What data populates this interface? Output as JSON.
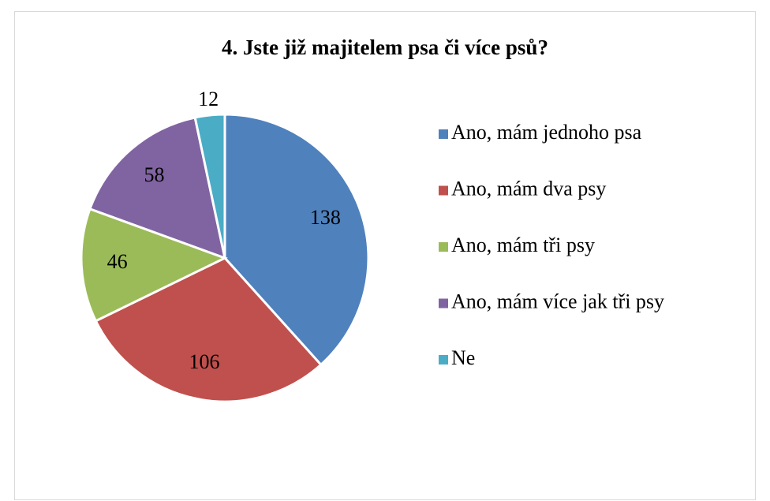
{
  "chart_data": {
    "type": "pie",
    "title": "4. Jste již majitelem psa či více psů?",
    "categories": [
      "Ano, mám jednoho psa",
      "Ano, mám dva psy",
      "Ano, mám tři psy",
      "Ano, mám více jak tři psy",
      "Ne"
    ],
    "values": [
      138,
      106,
      46,
      58,
      12
    ],
    "colors": [
      "#4f81bd",
      "#c0504d",
      "#9bbb59",
      "#8064a2",
      "#4bacc6"
    ],
    "legend": "right"
  }
}
